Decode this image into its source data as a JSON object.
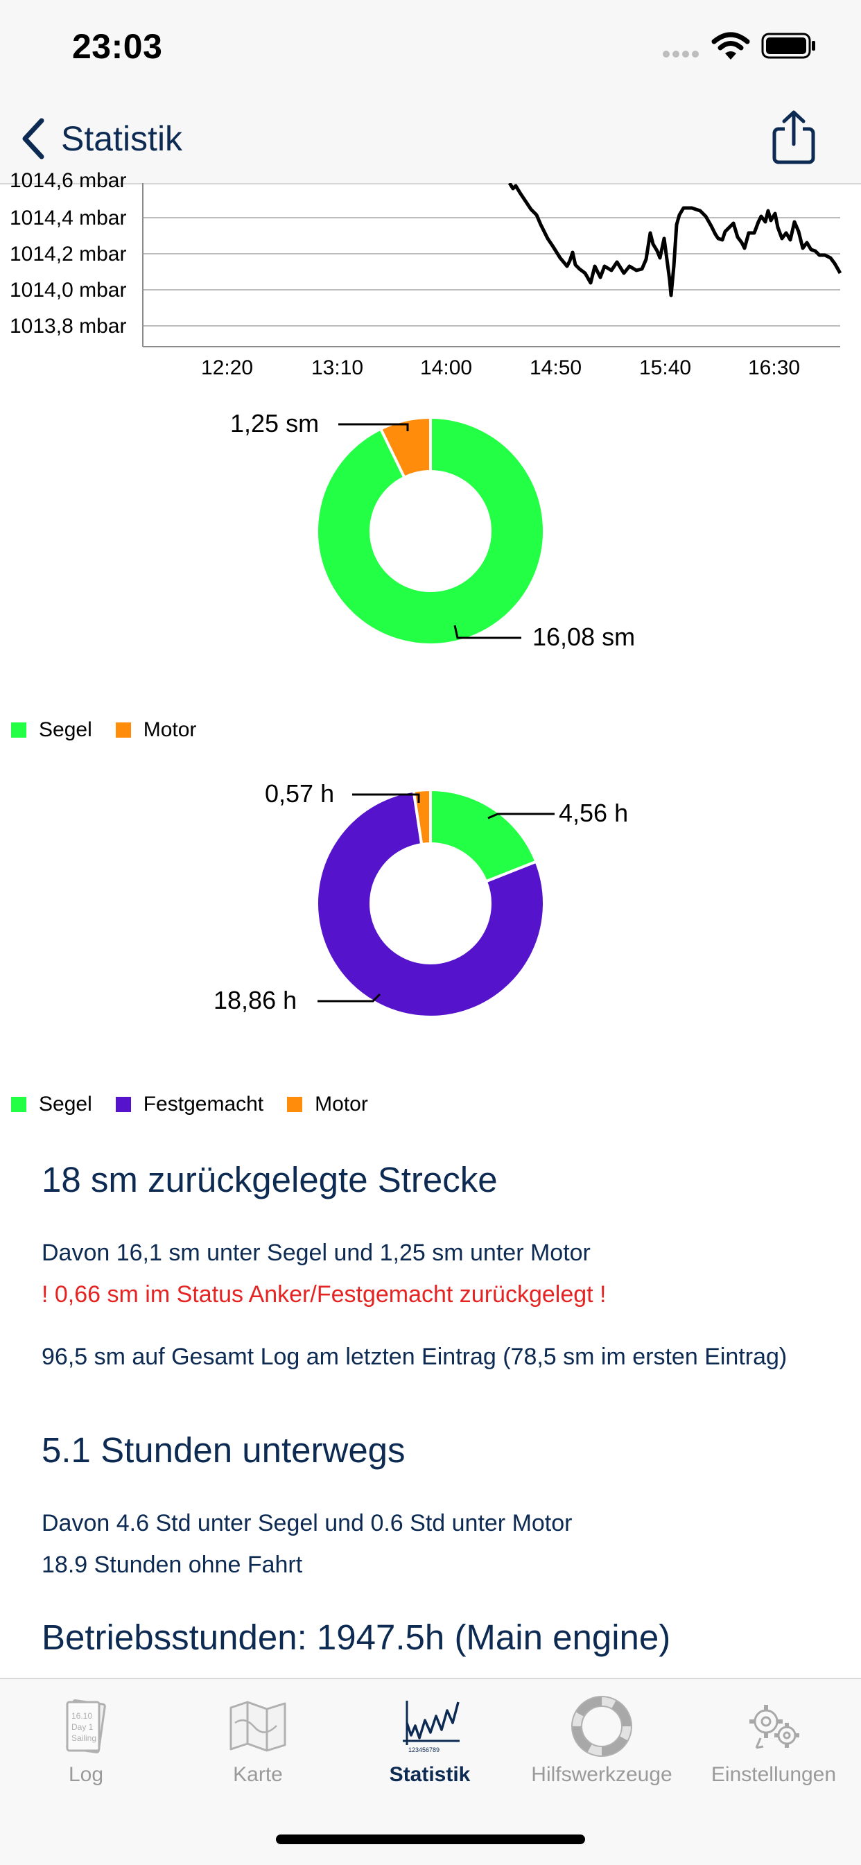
{
  "status_bar": {
    "time": "23:03"
  },
  "nav": {
    "back_label": "Statistik"
  },
  "pressure_chart": {
    "y_labels": [
      "1014,6 mbar",
      "1014,4 mbar",
      "1014,2 mbar",
      "1014,0 mbar",
      "1013,8 mbar"
    ],
    "x_labels": [
      "12:20",
      "13:10",
      "14:00",
      "14:50",
      "15:40",
      "16:30"
    ]
  },
  "distance_chart": {
    "slice_labels": {
      "motor": "1,25 sm",
      "segel": "16,08 sm"
    },
    "legend": [
      "Segel",
      "Motor"
    ]
  },
  "time_chart": {
    "slice_labels": {
      "motor": "0,57 h",
      "segel": "4,56 h",
      "festgemacht": "18,86 h"
    },
    "legend": [
      "Segel",
      "Festgemacht",
      "Motor"
    ]
  },
  "chart_data": [
    {
      "type": "line",
      "x": [
        "12:20",
        "13:10",
        "14:00",
        "14:50",
        "15:40",
        "16:30"
      ],
      "y_ticks": [
        1014.6,
        1014.4,
        1014.2,
        1014.0,
        1013.8
      ],
      "ylabel": "mbar",
      "series": [
        {
          "values_approx": [
            [
              "14:30",
              1014.6
            ],
            [
              "14:35",
              1014.5
            ],
            [
              "14:45",
              1014.3
            ],
            [
              "14:52",
              1014.1
            ],
            [
              "14:58",
              1014.0
            ],
            [
              "15:05",
              1014.1
            ],
            [
              "15:15",
              1014.1
            ],
            [
              "15:25",
              1014.2
            ],
            [
              "15:30",
              1013.95
            ],
            [
              "15:34",
              1014.35
            ],
            [
              "15:45",
              1014.45
            ],
            [
              "15:55",
              1014.4
            ],
            [
              "16:05",
              1014.25
            ],
            [
              "16:15",
              1014.45
            ],
            [
              "16:22",
              1014.35
            ],
            [
              "16:30",
              1014.15
            ],
            [
              "16:32",
              1014.0
            ],
            [
              "16:40",
              1014.2
            ],
            [
              "16:48",
              1014.0
            ],
            [
              "16:58",
              1014.1
            ]
          ]
        }
      ]
    },
    {
      "type": "pie",
      "categories": [
        "Segel",
        "Motor"
      ],
      "values": [
        16.08,
        1.25
      ],
      "unit": "sm"
    },
    {
      "type": "pie",
      "categories": [
        "Segel",
        "Festgemacht",
        "Motor"
      ],
      "values": [
        4.56,
        18.86,
        0.57
      ],
      "unit": "h"
    }
  ],
  "colors": {
    "segel": "#22ff44",
    "motor": "#ff8c0a",
    "festgemacht": "#5514cc",
    "text": "#0d2a52",
    "warning": "#e62323"
  },
  "summary": {
    "distance_heading": "18 sm zurückgelegte Strecke",
    "distance_detail": "Davon 16,1 sm unter Segel und 1,25 sm unter Motor",
    "anchor_warning": "! 0,66 sm im Status Anker/Festgemacht zurückgelegt !",
    "total_log": "96,5 sm auf Gesamt Log am letzten Eintrag (78,5 sm im ersten Eintrag)",
    "hours_heading": "5.1 Stunden unterwegs",
    "hours_detail": "Davon 4.6 Std unter Segel und 0.6 Std unter Motor",
    "idle_hours": "18.9 Stunden ohne Fahrt",
    "engine_hours": "Betriebsstunden: 1947.5h (Main engine)"
  },
  "tabs": [
    {
      "label": "Log",
      "icon": "log-book-icon",
      "active": false
    },
    {
      "label": "Karte",
      "icon": "map-icon",
      "active": false
    },
    {
      "label": "Statistik",
      "icon": "statistics-chart-icon",
      "active": true
    },
    {
      "label": "Hilfswerkzeuge",
      "icon": "lifebuoy-icon",
      "active": false
    },
    {
      "label": "Einstellungen",
      "icon": "gears-icon",
      "active": false
    }
  ]
}
